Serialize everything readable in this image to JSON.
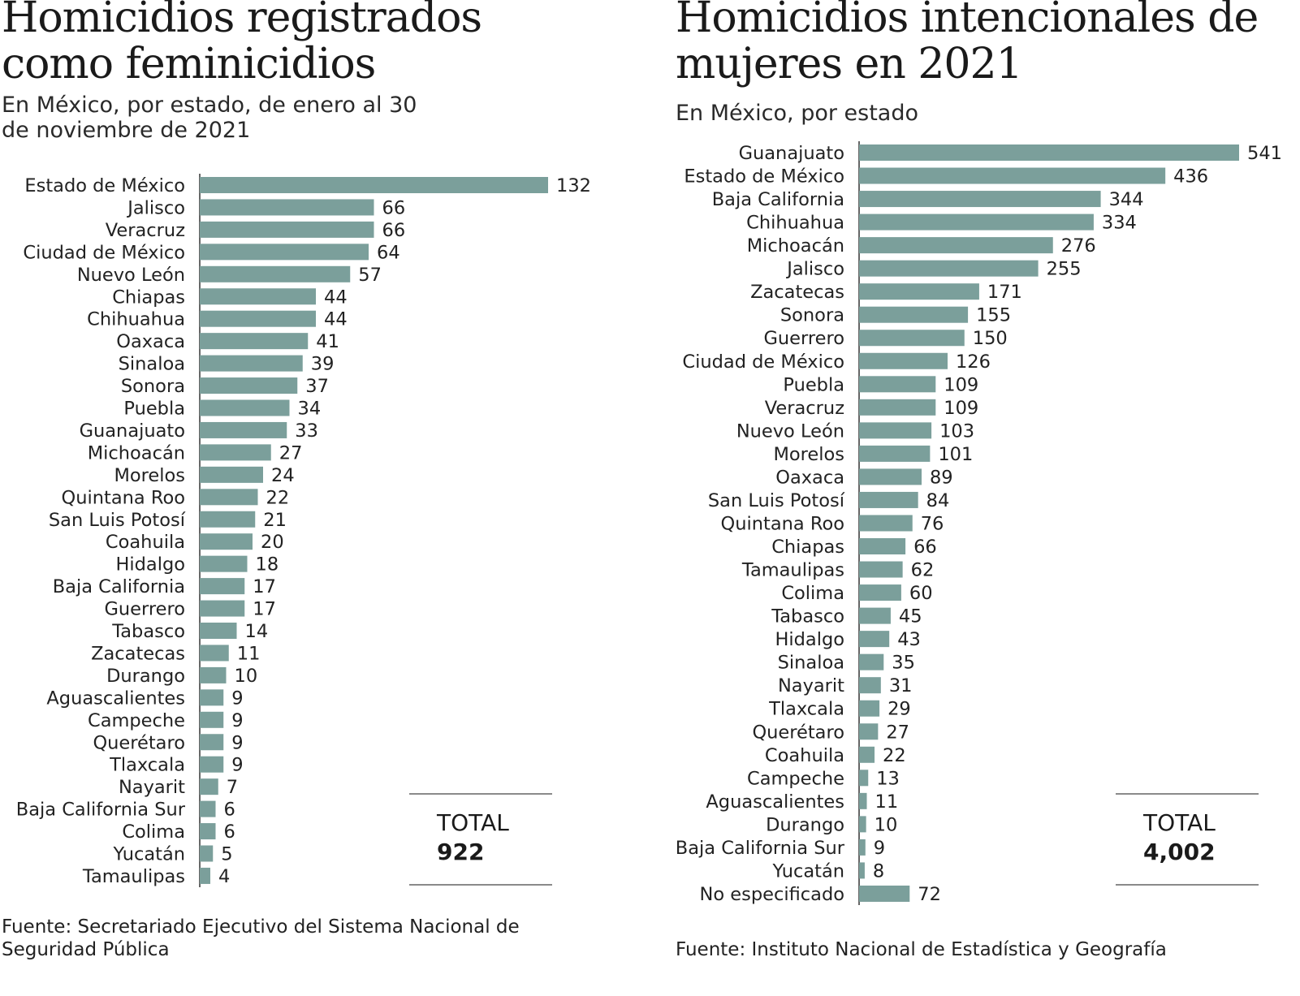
{
  "colors": {
    "bar": "#7b9f9b",
    "axis": "#333333",
    "text": "#222222",
    "rule": "#8a8a8a"
  },
  "left": {
    "title": "Homicidios registrados como feminicidios",
    "subtitle": "En México, por estado, de enero al 30 de noviembre de 2021",
    "source": "Fuente: Secretariado Ejecutivo del Sistema Nacional de Seguridad Pública",
    "total_label": "TOTAL",
    "total_value": "922"
  },
  "right": {
    "title": "Homicidios intencionales de mujeres en 2021",
    "subtitle": "En México, por estado",
    "source": "Fuente: Instituto Nacional de Estadística y Geografía",
    "total_label": "TOTAL",
    "total_value": "4,002"
  },
  "chart_data": [
    {
      "type": "bar",
      "orientation": "horizontal",
      "title": "Homicidios registrados como feminicidios",
      "subtitle": "En México, por estado, de enero al 30 de noviembre de 2021",
      "categories": [
        "Estado de México",
        "Jalisco",
        "Veracruz",
        "Ciudad de México",
        "Nuevo León",
        "Chiapas",
        "Chihuahua",
        "Oaxaca",
        "Sinaloa",
        "Sonora",
        "Puebla",
        "Guanajuato",
        "Michoacán",
        "Morelos",
        "Quintana Roo",
        "San Luis Potosí",
        "Coahuila",
        "Hidalgo",
        "Baja California",
        "Guerrero",
        "Tabasco",
        "Zacatecas",
        "Durango",
        "Aguascalientes",
        "Campeche",
        "Querétaro",
        "Tlaxcala",
        "Nayarit",
        "Baja California Sur",
        "Colima",
        "Yucatán",
        "Tamaulipas"
      ],
      "values": [
        132,
        66,
        66,
        64,
        57,
        44,
        44,
        41,
        39,
        37,
        34,
        33,
        27,
        24,
        22,
        21,
        20,
        18,
        17,
        17,
        14,
        11,
        10,
        9,
        9,
        9,
        9,
        7,
        6,
        6,
        5,
        4
      ],
      "xlim": [
        0,
        132
      ],
      "grid": false,
      "data_labels": true
    },
    {
      "type": "bar",
      "orientation": "horizontal",
      "title": "Homicidios intencionales de mujeres en 2021",
      "subtitle": "En México, por estado",
      "categories": [
        "Guanajuato",
        "Estado de México",
        "Baja California",
        "Chihuahua",
        "Michoacán",
        "Jalisco",
        "Zacatecas",
        "Sonora",
        "Guerrero",
        "Ciudad de México",
        "Puebla",
        "Veracruz",
        "Nuevo León",
        "Morelos",
        "Oaxaca",
        "San Luis Potosí",
        "Quintana Roo",
        "Chiapas",
        "Tamaulipas",
        "Colima",
        "Tabasco",
        "Hidalgo",
        "Sinaloa",
        "Nayarit",
        "Tlaxcala",
        "Querétaro",
        "Coahuila",
        "Campeche",
        "Aguascalientes",
        "Durango",
        "Baja California Sur",
        "Yucatán",
        "No especificado"
      ],
      "values": [
        541,
        436,
        344,
        334,
        276,
        255,
        171,
        155,
        150,
        126,
        109,
        109,
        103,
        101,
        89,
        84,
        76,
        66,
        62,
        60,
        45,
        43,
        35,
        31,
        29,
        27,
        22,
        13,
        11,
        10,
        9,
        8,
        72
      ],
      "xlim": [
        0,
        541
      ],
      "grid": false,
      "data_labels": true
    }
  ]
}
